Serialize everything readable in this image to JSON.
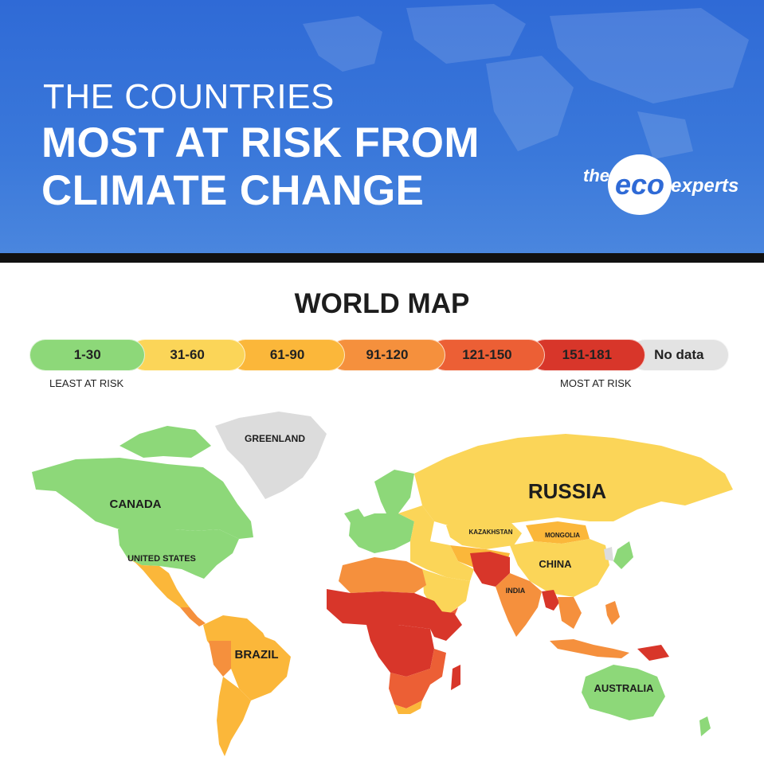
{
  "header": {
    "title_line1": "THE COUNTRIES",
    "title_line2a": "MOST AT RISK FROM",
    "title_line2b": "CLIMATE CHANGE",
    "logo": {
      "the": "the",
      "eco": "eco",
      "experts": "experts"
    }
  },
  "map": {
    "title": "WORLD MAP",
    "legend": {
      "items": [
        {
          "label": "1-30",
          "color": "#8dd879"
        },
        {
          "label": "31-60",
          "color": "#fbd558"
        },
        {
          "label": "61-90",
          "color": "#fbb73a"
        },
        {
          "label": "91-120",
          "color": "#f5903d"
        },
        {
          "label": "121-150",
          "color": "#ec5f35"
        },
        {
          "label": "151-181",
          "color": "#d8362a"
        },
        {
          "label": "No data",
          "color": "#e3e3e3"
        }
      ],
      "least_label": "LEAST AT RISK",
      "most_label": "MOST AT RISK"
    },
    "country_labels": {
      "greenland": "GREENLAND",
      "canada": "CANADA",
      "united_states": "UNITED STATES",
      "brazil": "BRAZIL",
      "russia": "RUSSIA",
      "kazakhstan": "KAZAKHSTAN",
      "mongolia": "MONGOLIA",
      "china": "CHINA",
      "india": "INDIA",
      "australia": "AUSTRALIA"
    }
  }
}
